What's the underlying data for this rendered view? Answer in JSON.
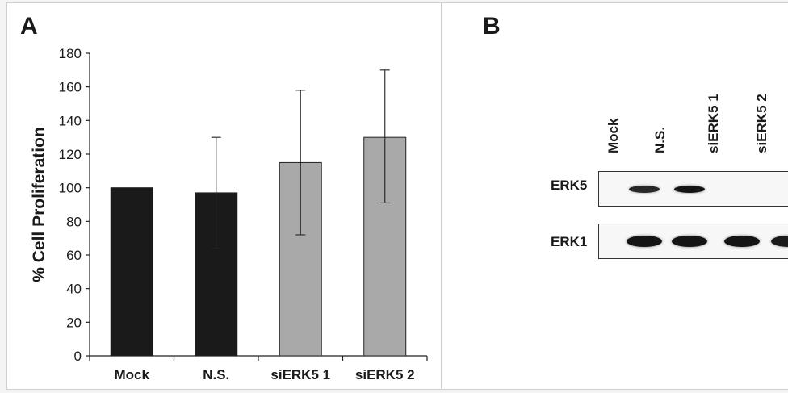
{
  "panel_a": {
    "letter": "A"
  },
  "panel_b": {
    "letter": "B",
    "lanes": [
      "Mock",
      "N.S.",
      "siERK5 1",
      "siERK5 2"
    ],
    "rows": [
      {
        "label": "ERK5",
        "intensity": [
          0.85,
          1.0,
          0.0,
          0.0
        ]
      },
      {
        "label": "ERK1",
        "intensity": [
          1.0,
          1.0,
          1.0,
          0.95
        ]
      }
    ]
  },
  "chart_data": {
    "type": "bar",
    "title": "",
    "xlabel": "",
    "ylabel": "% Cell Proliferation",
    "categories": [
      "Mock",
      "N.S.",
      "siERK5 1",
      "siERK5 2"
    ],
    "values": [
      100,
      97,
      115,
      130
    ],
    "error_high": [
      100,
      130,
      158,
      170
    ],
    "error_low": [
      100,
      64,
      72,
      91
    ],
    "bar_colors": [
      "#1a1a1a",
      "#1a1a1a",
      "#a9a9a9",
      "#a9a9a9"
    ],
    "ylim": [
      0,
      180
    ],
    "yticks": [
      0,
      20,
      40,
      60,
      80,
      100,
      120,
      140,
      160,
      180
    ],
    "grid": false
  }
}
